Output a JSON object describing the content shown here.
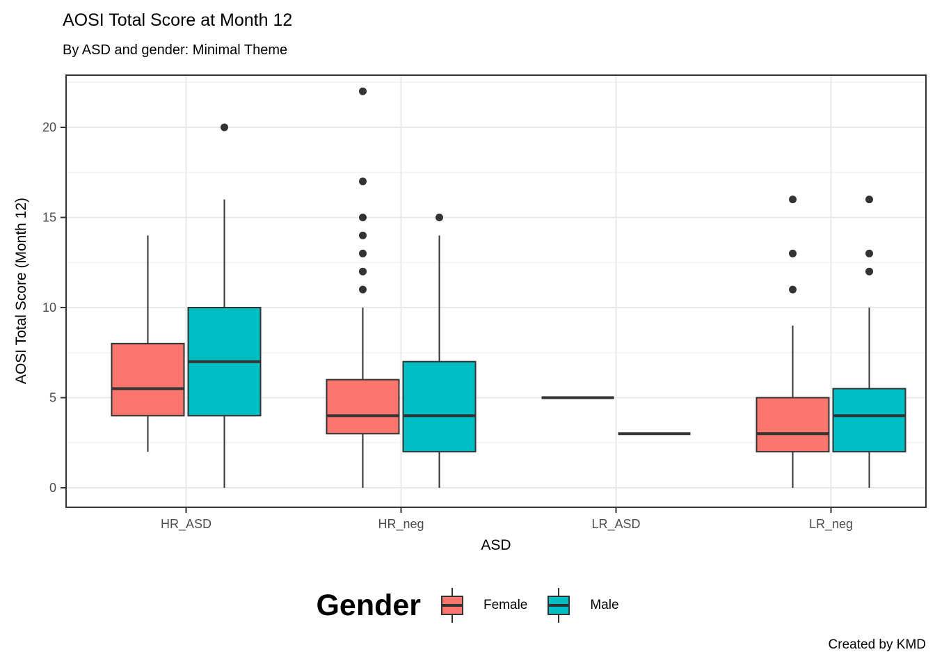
{
  "figure": {
    "caption": "Created by KMD"
  },
  "legend": {
    "title": "Gender",
    "items": [
      {
        "label": "Female",
        "color": "#F8766D"
      },
      {
        "label": "Male",
        "color": "#00BFC4"
      }
    ]
  },
  "chart_data": {
    "type": "boxplot",
    "title": "AOSI Total Score at Month 12",
    "subtitle": "By ASD and gender: Minimal Theme",
    "xlabel": "ASD",
    "ylabel": "AOSI Total Score (Month 12)",
    "categories": [
      "HR_ASD",
      "HR_neg",
      "LR_ASD",
      "LR_neg"
    ],
    "y_ticks": [
      0,
      5,
      10,
      15,
      20
    ],
    "y_minor_step": 2.5,
    "ylim": [
      -1.1,
      22.9
    ],
    "grid": "major+minor",
    "legend_position": "bottom",
    "series": [
      {
        "name": "Female",
        "color": "#F8766D",
        "boxes": [
          {
            "category": "HR_ASD",
            "whisker_low": 2,
            "q1": 4,
            "median": 5.5,
            "q3": 8,
            "whisker_high": 14,
            "outliers": []
          },
          {
            "category": "HR_neg",
            "whisker_low": 0,
            "q1": 3,
            "median": 4,
            "q3": 6,
            "whisker_high": 10,
            "outliers": [
              11,
              12,
              13,
              14,
              15,
              17,
              22
            ]
          },
          {
            "category": "LR_ASD",
            "whisker_low": 5,
            "q1": 5,
            "median": 5,
            "q3": 5,
            "whisker_high": 5,
            "outliers": []
          },
          {
            "category": "LR_neg",
            "whisker_low": 0,
            "q1": 2,
            "median": 3,
            "q3": 5,
            "whisker_high": 9,
            "outliers": [
              11,
              13,
              16
            ]
          }
        ]
      },
      {
        "name": "Male",
        "color": "#00BFC4",
        "boxes": [
          {
            "category": "HR_ASD",
            "whisker_low": 0,
            "q1": 4,
            "median": 7,
            "q3": 10,
            "whisker_high": 16,
            "outliers": [
              20
            ]
          },
          {
            "category": "HR_neg",
            "whisker_low": 0,
            "q1": 2,
            "median": 4,
            "q3": 7,
            "whisker_high": 14,
            "outliers": [
              15
            ]
          },
          {
            "category": "LR_ASD",
            "whisker_low": 3,
            "q1": 3,
            "median": 3,
            "q3": 3,
            "whisker_high": 3,
            "outliers": []
          },
          {
            "category": "LR_neg",
            "whisker_low": 0,
            "q1": 2,
            "median": 4,
            "q3": 5.5,
            "whisker_high": 10,
            "outliers": [
              12,
              13,
              16
            ]
          }
        ]
      }
    ]
  },
  "style": {
    "box_border": "#333333",
    "grid_major": "#E9E9E9",
    "grid_minor": "#F2F2F2",
    "tick_label_color": "#4D4D4D",
    "text_color": "#000000",
    "background": "#FFFFFF"
  }
}
